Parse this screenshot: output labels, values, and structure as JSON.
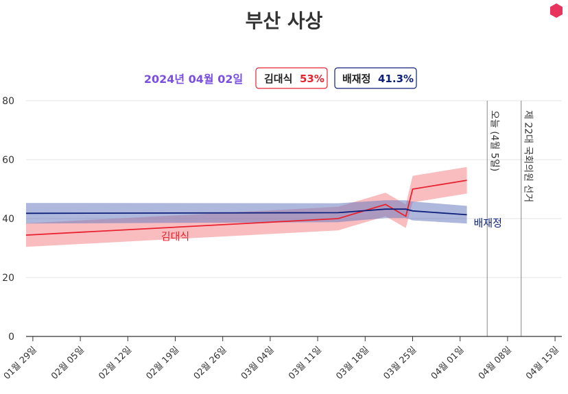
{
  "chart_data": {
    "type": "line",
    "title": "부산 사상",
    "legend": {
      "date": "2024년 04월 02일",
      "placement": "top-center",
      "entries": [
        {
          "name": "김대식",
          "value": "53%"
        },
        {
          "name": "배재정",
          "value": "41.3%"
        }
      ]
    },
    "ylim": [
      0,
      80
    ],
    "yticks": [
      0,
      20,
      40,
      60,
      80
    ],
    "grid": "horizontal",
    "x_ticks": [
      {
        "date": "2024-01-29",
        "label": "01월 29일"
      },
      {
        "date": "2024-02-05",
        "label": "02월 05일"
      },
      {
        "date": "2024-02-12",
        "label": "02월 12일"
      },
      {
        "date": "2024-02-19",
        "label": "02월 19일"
      },
      {
        "date": "2024-02-26",
        "label": "02월 26일"
      },
      {
        "date": "2024-03-04",
        "label": "03월 04일"
      },
      {
        "date": "2024-03-11",
        "label": "03월 11일"
      },
      {
        "date": "2024-03-18",
        "label": "03월 18일"
      },
      {
        "date": "2024-03-25",
        "label": "03월 25일"
      },
      {
        "date": "2024-04-01",
        "label": "04월 01일"
      },
      {
        "date": "2024-04-08",
        "label": "04월 08일"
      },
      {
        "date": "2024-04-15",
        "label": "04월 15일"
      }
    ],
    "xlim": [
      "2024-01-28",
      "2024-04-16"
    ],
    "series": [
      {
        "name": "김대식",
        "color": "#e8212e",
        "band_color": "#f4868d",
        "points": [
          {
            "date": "2024-01-28",
            "y": 34.4,
            "lo": 30.4,
            "hi": 38.4
          },
          {
            "date": "2024-03-14",
            "y": 40.0,
            "lo": 36.0,
            "hi": 44.0
          },
          {
            "date": "2024-03-21",
            "y": 44.8,
            "lo": 40.8,
            "hi": 48.8
          },
          {
            "date": "2024-03-24",
            "y": 40.8,
            "lo": 36.8,
            "hi": 44.8
          },
          {
            "date": "2024-03-25",
            "y": 50.0,
            "lo": 45.5,
            "hi": 54.5
          },
          {
            "date": "2024-04-02",
            "y": 53.0,
            "lo": 48.5,
            "hi": 57.5
          }
        ]
      },
      {
        "name": "배재정",
        "color": "#0d1f7a",
        "band_color": "#6c7cc0",
        "points": [
          {
            "date": "2024-01-28",
            "y": 41.8,
            "lo": 38.3,
            "hi": 45.3
          },
          {
            "date": "2024-03-14",
            "y": 42.0,
            "lo": 38.8,
            "hi": 45.2
          },
          {
            "date": "2024-03-21",
            "y": 43.2,
            "lo": 40.2,
            "hi": 46.2
          },
          {
            "date": "2024-03-24",
            "y": 43.2,
            "lo": 40.2,
            "hi": 46.2
          },
          {
            "date": "2024-03-25",
            "y": 42.6,
            "lo": 39.4,
            "hi": 45.8
          },
          {
            "date": "2024-04-02",
            "y": 41.3,
            "lo": 38.3,
            "hi": 44.3
          }
        ]
      }
    ],
    "series_labels": [
      {
        "series": "김대식",
        "date": "2024-02-19",
        "y": 34.0,
        "text": "김대식"
      },
      {
        "series": "배재정",
        "date": "2024-04-03",
        "y": 38.5,
        "text": "배재정"
      }
    ],
    "vertical_markers": [
      {
        "date": "2024-04-05",
        "label": "오늘 (4월 5일)"
      },
      {
        "date": "2024-04-10",
        "label": "제 22대 국회의원 선거"
      }
    ]
  },
  "brand": {
    "logo_icon": "hexagon-icon",
    "logo_color": "#e8345c"
  }
}
